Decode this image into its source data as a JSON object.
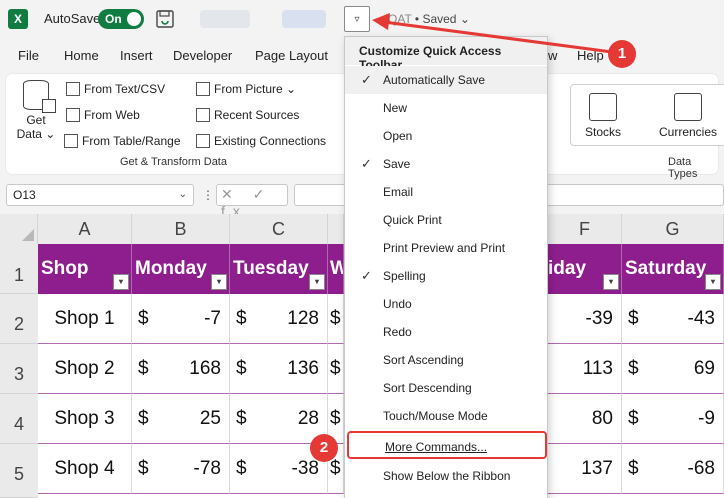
{
  "titlebar": {
    "logo": "X",
    "autosave_label": "AutoSave",
    "autosave_state": "On",
    "qat_button_glyph": "▿",
    "doc_title_prefix": "QAT",
    "doc_title_status": "Saved",
    "doc_title_caret": "⌄"
  },
  "tabs": [
    "File",
    "Home",
    "Insert",
    "Developer",
    "Page Layout",
    "w",
    "Help"
  ],
  "ribbon": {
    "get_data": {
      "label_1": "Get",
      "label_2": "Data ⌄"
    },
    "items": [
      "From Text/CSV",
      "From Web",
      "From Table/Range",
      "From Picture ⌄",
      "Recent Sources",
      "Existing Connections"
    ],
    "group_label": "Get & Transform Data",
    "stocks_label": "Stocks",
    "currencies_label": "Currencies",
    "datatypes_label": "Data Types"
  },
  "formula_bar": {
    "name_box": "O13",
    "name_box_caret": "⌄",
    "sep": "⋮",
    "icons": "✕ ✓ fx"
  },
  "grid": {
    "col_headers": [
      "A",
      "B",
      "C",
      "",
      "",
      "F",
      "G"
    ],
    "row_headers": [
      "1",
      "2",
      "3",
      "4",
      "5"
    ],
    "header_cells": [
      "Shop",
      "Monday",
      "Tuesday",
      "W",
      "iday",
      "Saturday"
    ],
    "filter_glyph": "▾",
    "currency": "$",
    "rows": [
      {
        "shop": "Shop 1",
        "b": "-7",
        "c": "128",
        "f": "-39",
        "g": "-43"
      },
      {
        "shop": "Shop 2",
        "b": "168",
        "c": "136",
        "f": "113",
        "g": "69"
      },
      {
        "shop": "Shop 3",
        "b": "25",
        "c": "28",
        "f": "80",
        "g": "-9"
      },
      {
        "shop": "Shop 4",
        "b": "-78",
        "c": "-38",
        "f": "137",
        "g": "-68"
      }
    ]
  },
  "menu": {
    "title": "Customize Quick Access Toolbar",
    "check_glyph": "✓",
    "items": [
      {
        "label": "Automatically Save",
        "checked": true
      },
      {
        "label": "New",
        "checked": false
      },
      {
        "label": "Open",
        "checked": false
      },
      {
        "label": "Save",
        "checked": true
      },
      {
        "label": "Email",
        "checked": false
      },
      {
        "label": "Quick Print",
        "checked": false
      },
      {
        "label": "Print Preview and Print",
        "checked": false
      },
      {
        "label": "Spelling",
        "checked": true
      },
      {
        "label": "Undo",
        "checked": false
      },
      {
        "label": "Redo",
        "checked": false
      },
      {
        "label": "Sort Ascending",
        "checked": false
      },
      {
        "label": "Sort Descending",
        "checked": false
      },
      {
        "label": "Touch/Mouse Mode",
        "checked": false
      }
    ],
    "more_commands": "More Commands...",
    "show_below": "Show Below the Ribbon"
  },
  "callouts": {
    "badge_1": "1",
    "badge_2": "2"
  },
  "colors": {
    "accent": "#107c41",
    "header_purple": "#8e1e8e",
    "callout_red": "#e53935"
  }
}
